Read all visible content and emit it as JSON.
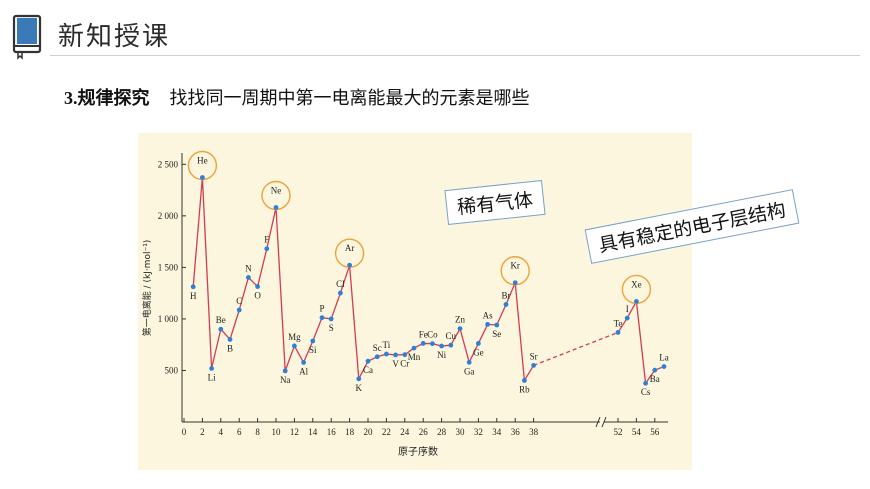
{
  "header": {
    "title": "新知授课",
    "icon": "book-icon",
    "accent": "#3a7ab8"
  },
  "subtitle": {
    "number": "3.",
    "lead": "规律探究",
    "text": "找找同一周期中第一电离能最大的元素是哪些"
  },
  "callouts": {
    "noble_gas": "稀有气体",
    "stable_shell": "具有稳定的电子层结构"
  },
  "chart_data": {
    "type": "line",
    "title": "",
    "xlabel": "原子序数",
    "ylabel": "第一电离能 / (kJ·mol⁻¹)",
    "yticks": [
      500,
      1000,
      1500,
      2000,
      2500
    ],
    "xticks": [
      0,
      2,
      4,
      6,
      8,
      10,
      12,
      14,
      16,
      18,
      20,
      22,
      24,
      26,
      28,
      30,
      32,
      34,
      36,
      38,
      52,
      54,
      56
    ],
    "ylim": [
      0,
      2600
    ],
    "line_color": "#d23b55",
    "point_color": "#2e7fd6",
    "highlight_color": "#f0a13a",
    "points": [
      {
        "z": 1,
        "el": "H",
        "v": 1312
      },
      {
        "z": 2,
        "el": "He",
        "v": 2372
      },
      {
        "z": 3,
        "el": "Li",
        "v": 520
      },
      {
        "z": 4,
        "el": "Be",
        "v": 900
      },
      {
        "z": 5,
        "el": "B",
        "v": 801
      },
      {
        "z": 6,
        "el": "C",
        "v": 1086
      },
      {
        "z": 7,
        "el": "N",
        "v": 1402
      },
      {
        "z": 8,
        "el": "O",
        "v": 1314
      },
      {
        "z": 9,
        "el": "F",
        "v": 1681
      },
      {
        "z": 10,
        "el": "Ne",
        "v": 2081
      },
      {
        "z": 11,
        "el": "Na",
        "v": 496
      },
      {
        "z": 12,
        "el": "Mg",
        "v": 738
      },
      {
        "z": 13,
        "el": "Al",
        "v": 578
      },
      {
        "z": 14,
        "el": "Si",
        "v": 786
      },
      {
        "z": 15,
        "el": "P",
        "v": 1012
      },
      {
        "z": 16,
        "el": "S",
        "v": 1000
      },
      {
        "z": 17,
        "el": "Cl",
        "v": 1251
      },
      {
        "z": 18,
        "el": "Ar",
        "v": 1521
      },
      {
        "z": 19,
        "el": "K",
        "v": 419
      },
      {
        "z": 20,
        "el": "Ca",
        "v": 590
      },
      {
        "z": 21,
        "el": "Sc",
        "v": 633
      },
      {
        "z": 22,
        "el": "Ti",
        "v": 659
      },
      {
        "z": 23,
        "el": "V",
        "v": 651
      },
      {
        "z": 24,
        "el": "Cr",
        "v": 653
      },
      {
        "z": 25,
        "el": "Mn",
        "v": 717
      },
      {
        "z": 26,
        "el": "Fe",
        "v": 762
      },
      {
        "z": 27,
        "el": "Co",
        "v": 760
      },
      {
        "z": 28,
        "el": "Ni",
        "v": 737
      },
      {
        "z": 29,
        "el": "Cu",
        "v": 745
      },
      {
        "z": 30,
        "el": "Zn",
        "v": 906
      },
      {
        "z": 31,
        "el": "Ga",
        "v": 579
      },
      {
        "z": 32,
        "el": "Ge",
        "v": 762
      },
      {
        "z": 33,
        "el": "As",
        "v": 947
      },
      {
        "z": 34,
        "el": "Se",
        "v": 941
      },
      {
        "z": 35,
        "el": "Br",
        "v": 1140
      },
      {
        "z": 36,
        "el": "Kr",
        "v": 1351
      },
      {
        "z": 37,
        "el": "Rb",
        "v": 403
      },
      {
        "z": 38,
        "el": "Sr",
        "v": 549
      },
      {
        "z": 52,
        "el": "Te",
        "v": 869
      },
      {
        "z": 53,
        "el": "I",
        "v": 1008
      },
      {
        "z": 54,
        "el": "Xe",
        "v": 1170
      },
      {
        "z": 55,
        "el": "Cs",
        "v": 376
      },
      {
        "z": 56,
        "el": "Ba",
        "v": 503
      },
      {
        "z": 57,
        "el": "La",
        "v": 538
      }
    ],
    "highlighted": [
      "He",
      "Ne",
      "Ar",
      "Kr",
      "Xe"
    ]
  }
}
